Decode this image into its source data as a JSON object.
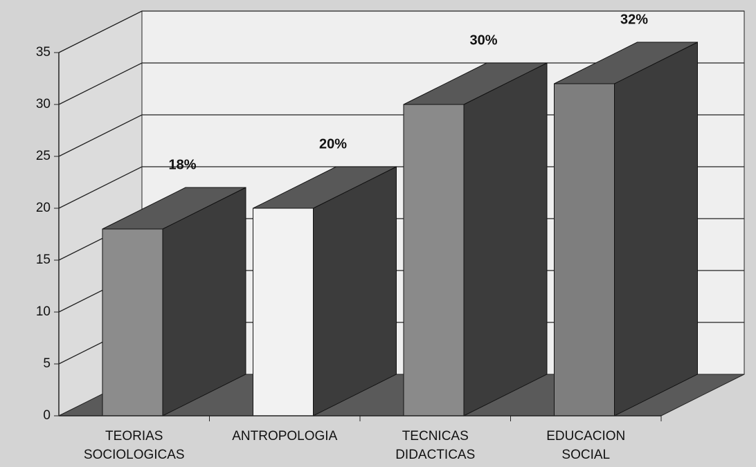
{
  "chart_data": {
    "type": "bar3d",
    "categories": [
      [
        "TEORIAS",
        "SOCIOLOGICAS"
      ],
      [
        "ANTROPOLOGIA"
      ],
      [
        "TECNICAS",
        "DIDACTICAS"
      ],
      [
        "EDUCACION",
        "SOCIAL"
      ]
    ],
    "values": [
      18,
      20,
      30,
      32
    ],
    "value_labels": [
      "18%",
      "20%",
      "30%",
      "32%"
    ],
    "colors": [
      "#8c8c8c",
      "#f2f2f2",
      "#8a8a8a",
      "#7e7e7e"
    ],
    "ylim": [
      0,
      35
    ],
    "yticks": [
      0,
      5,
      10,
      15,
      20,
      25,
      30,
      35
    ],
    "grid": true
  }
}
